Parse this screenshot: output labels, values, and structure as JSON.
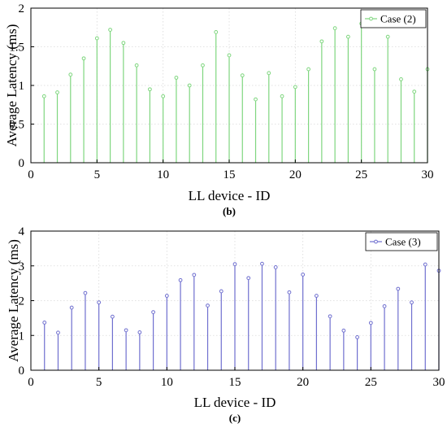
{
  "chart_data": [
    {
      "type": "stem",
      "caption": "(b)",
      "xlabel": "LL device - ID",
      "ylabel": "Average Latency (ms)",
      "xlim": [
        0,
        30
      ],
      "ylim": [
        0,
        2
      ],
      "xticks": [
        0,
        5,
        10,
        15,
        20,
        25,
        30
      ],
      "yticks": [
        0,
        0.5,
        1,
        1.5,
        2
      ],
      "ytick_labels": [
        "0",
        "0.5",
        "1",
        "1.5",
        "2"
      ],
      "grid": true,
      "legend_position": "top-right",
      "series": [
        {
          "name": "Case (2)",
          "color": "#7fd67f",
          "x": [
            1,
            2,
            3,
            4,
            5,
            6,
            7,
            8,
            9,
            10,
            11,
            12,
            13,
            14,
            15,
            16,
            17,
            18,
            19,
            20,
            21,
            22,
            23,
            24,
            25,
            26,
            27,
            28,
            29,
            30
          ],
          "values": [
            0.86,
            0.91,
            1.14,
            1.35,
            1.61,
            1.72,
            1.55,
            1.26,
            0.95,
            0.86,
            1.1,
            1.0,
            1.26,
            1.69,
            1.39,
            1.13,
            0.82,
            1.16,
            0.86,
            0.98,
            1.21,
            1.57,
            1.74,
            1.63,
            1.8,
            1.21,
            1.63,
            1.08,
            0.92,
            1.21
          ]
        }
      ]
    },
    {
      "type": "stem",
      "caption": "(c)",
      "xlabel": "LL device - ID",
      "ylabel": "Average Latency (ms)",
      "xlim": [
        0,
        30
      ],
      "ylim": [
        0,
        4
      ],
      "xticks": [
        0,
        5,
        10,
        15,
        20,
        25,
        30
      ],
      "yticks": [
        0,
        1,
        2,
        3,
        4
      ],
      "ytick_labels": [
        "0",
        "1",
        "2",
        "3",
        "4"
      ],
      "grid": true,
      "legend_position": "top-right",
      "series": [
        {
          "name": "Case (3)",
          "color": "#6f6fcf",
          "x": [
            1,
            2,
            3,
            4,
            5,
            6,
            7,
            8,
            9,
            10,
            11,
            12,
            13,
            14,
            15,
            16,
            17,
            18,
            19,
            20,
            21,
            22,
            23,
            24,
            25,
            26,
            27,
            28,
            29,
            30
          ],
          "values": [
            1.37,
            1.08,
            1.8,
            2.22,
            1.95,
            1.54,
            1.15,
            1.09,
            1.67,
            2.14,
            2.59,
            2.74,
            1.86,
            2.27,
            3.05,
            2.65,
            3.06,
            2.96,
            2.24,
            2.75,
            2.14,
            1.55,
            1.14,
            0.95,
            1.36,
            1.84,
            2.34,
            1.95,
            3.04,
            2.86
          ]
        }
      ]
    }
  ]
}
